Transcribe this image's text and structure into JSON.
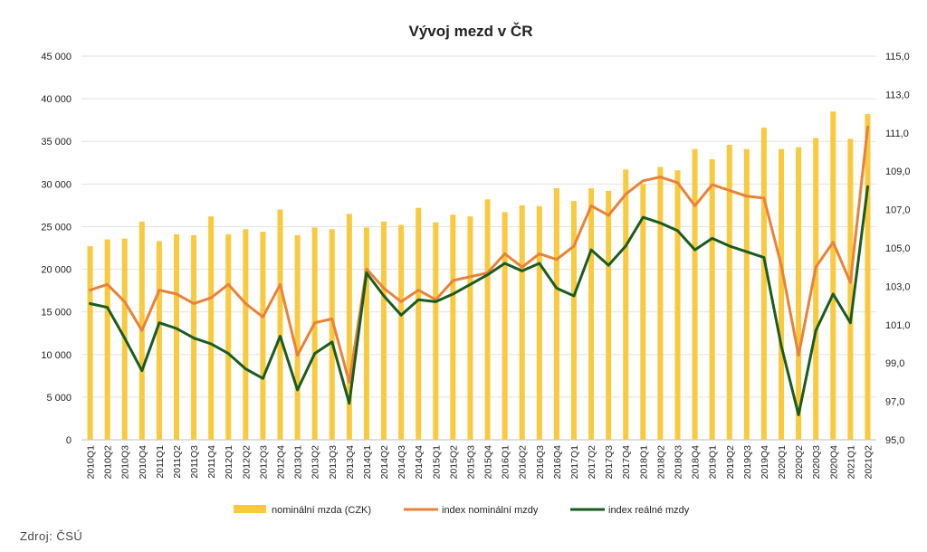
{
  "chart_data": {
    "type": "bar",
    "title": "Vývoj mezd v ČR",
    "categories": [
      "2010Q1",
      "2010Q2",
      "2010Q3",
      "2010Q4",
      "2011Q1",
      "2011Q2",
      "2011Q3",
      "2011Q4",
      "2012Q1",
      "2012Q2",
      "2012Q3",
      "2012Q4",
      "2013Q1",
      "2013Q2",
      "2013Q3",
      "2013Q4",
      "2014Q1",
      "2014Q2",
      "2014Q3",
      "2014Q4",
      "2015Q1",
      "2015Q2",
      "2015Q3",
      "2015Q4",
      "2016Q1",
      "2016Q2",
      "2016Q3",
      "2016Q4",
      "2017Q1",
      "2017Q2",
      "2017Q3",
      "2017Q4",
      "2018Q1",
      "2018Q2",
      "2018Q3",
      "2018Q4",
      "2019Q1",
      "2019Q2",
      "2019Q3",
      "2019Q4",
      "2020Q1",
      "2020Q2",
      "2020Q3",
      "2020Q4",
      "2021Q1",
      "2021Q2"
    ],
    "left_axis": {
      "ylim": [
        0,
        45000
      ],
      "ticks": [
        "0",
        "5 000",
        "10 000",
        "15 000",
        "20 000",
        "25 000",
        "30 000",
        "35 000",
        "40 000",
        "45 000"
      ]
    },
    "right_axis": {
      "ylim": [
        95,
        115
      ],
      "ticks": [
        "95,0",
        "97,0",
        "99,0",
        "101,0",
        "103,0",
        "105,0",
        "107,0",
        "109,0",
        "111,0",
        "113,0",
        "115,0"
      ]
    },
    "series": [
      {
        "name": "nominální mzda (CZK)",
        "kind": "bar",
        "axis": "left",
        "color": "#f9c93e",
        "values": [
          22700,
          23500,
          23600,
          25600,
          23300,
          24100,
          24000,
          26200,
          24100,
          24700,
          24400,
          27000,
          24000,
          24900,
          24700,
          26500,
          24900,
          25600,
          25200,
          27200,
          25500,
          26400,
          26200,
          28200,
          26700,
          27500,
          27400,
          29500,
          28000,
          29500,
          29200,
          31700,
          30000,
          32000,
          31600,
          34100,
          32900,
          34600,
          34100,
          36600,
          34100,
          34300,
          35400,
          38500,
          35300,
          38200
        ]
      },
      {
        "name": "index nominální mzdy",
        "kind": "line",
        "axis": "right",
        "color": "#e8823a",
        "values": [
          102.8,
          103.1,
          102.2,
          100.7,
          102.8,
          102.6,
          102.1,
          102.4,
          103.1,
          102.1,
          101.4,
          103.1,
          99.4,
          101.1,
          101.3,
          98.0,
          103.9,
          102.9,
          102.2,
          102.8,
          102.3,
          103.3,
          103.5,
          103.7,
          104.7,
          104.0,
          104.7,
          104.4,
          105.1,
          107.2,
          106.7,
          107.8,
          108.5,
          108.7,
          108.4,
          107.2,
          108.3,
          108.0,
          107.7,
          107.6,
          104.1,
          99.4,
          104.0,
          105.3,
          103.2,
          111.3
        ]
      },
      {
        "name": "index reálné mzdy",
        "kind": "line",
        "axis": "right",
        "color": "#1a5c1f",
        "values": [
          102.1,
          101.9,
          100.3,
          98.6,
          101.1,
          100.8,
          100.3,
          100.0,
          99.5,
          98.7,
          98.2,
          100.4,
          97.6,
          99.5,
          100.1,
          96.9,
          103.7,
          102.5,
          101.5,
          102.3,
          102.2,
          102.6,
          103.1,
          103.6,
          104.2,
          103.8,
          104.2,
          102.9,
          102.5,
          104.9,
          104.1,
          105.1,
          106.6,
          106.3,
          105.9,
          104.9,
          105.5,
          105.1,
          104.8,
          104.5,
          99.9,
          96.3,
          100.7,
          102.6,
          101.1,
          108.2
        ]
      }
    ],
    "legend": {
      "position": "bottom"
    },
    "grid": true,
    "source": "Zdroj: ČSÚ"
  }
}
